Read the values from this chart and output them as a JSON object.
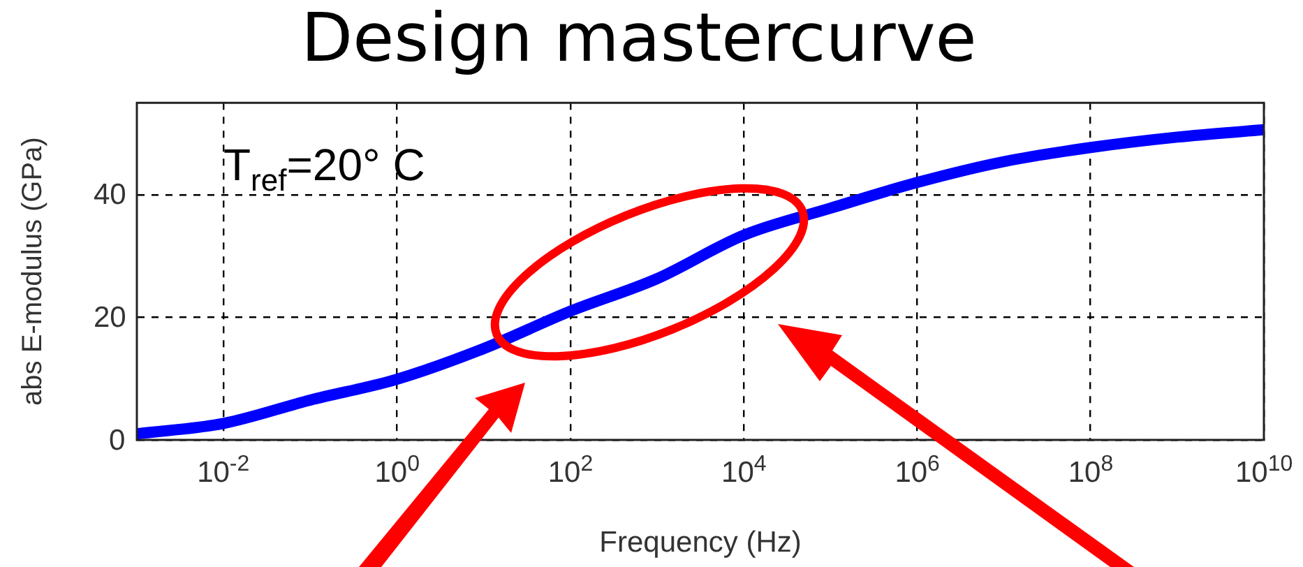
{
  "chart_data": {
    "type": "line",
    "title": "Design mastercurve",
    "xlabel": "Frequency (Hz)",
    "ylabel": "abs E-modulus (GPa)",
    "annotations": [
      "T$_{ref}$=20° C"
    ],
    "x": [
      0.001,
      0.01,
      0.1,
      1,
      10,
      100,
      1000,
      10000,
      100000,
      1000000,
      10000000,
      100000000,
      1000000000,
      10000000000
    ],
    "series": [
      {
        "color": "#0000ff",
        "values": [
          1.0,
          2.7,
          6.5,
          9.9,
          14.9,
          21,
          26.3,
          33.4,
          37.8,
          42,
          45.4,
          47.7,
          49.4,
          50.6
        ]
      }
    ],
    "log": "x",
    "xlim": [
      0.001,
      10000000000
    ],
    "xticks": [
      {
        "value": 0.01,
        "label": "10$^{-2}$"
      },
      {
        "value": 1,
        "label": "10$^{0}$"
      },
      {
        "value": 100,
        "label": "10$^{2}$"
      },
      {
        "value": 10000,
        "label": "10$^{4}$"
      },
      {
        "value": 1000000,
        "label": "10$^{6}$"
      },
      {
        "value": 100000000,
        "label": "10$^{8}$"
      },
      {
        "value": 10000000000,
        "label": "10$^{10}$"
      }
    ],
    "ylim": [
      0,
      55
    ],
    "yticks": [
      0,
      20,
      40
    ],
    "grid": true,
    "legend": false,
    "marker": "none",
    "line_style": "solid"
  }
}
